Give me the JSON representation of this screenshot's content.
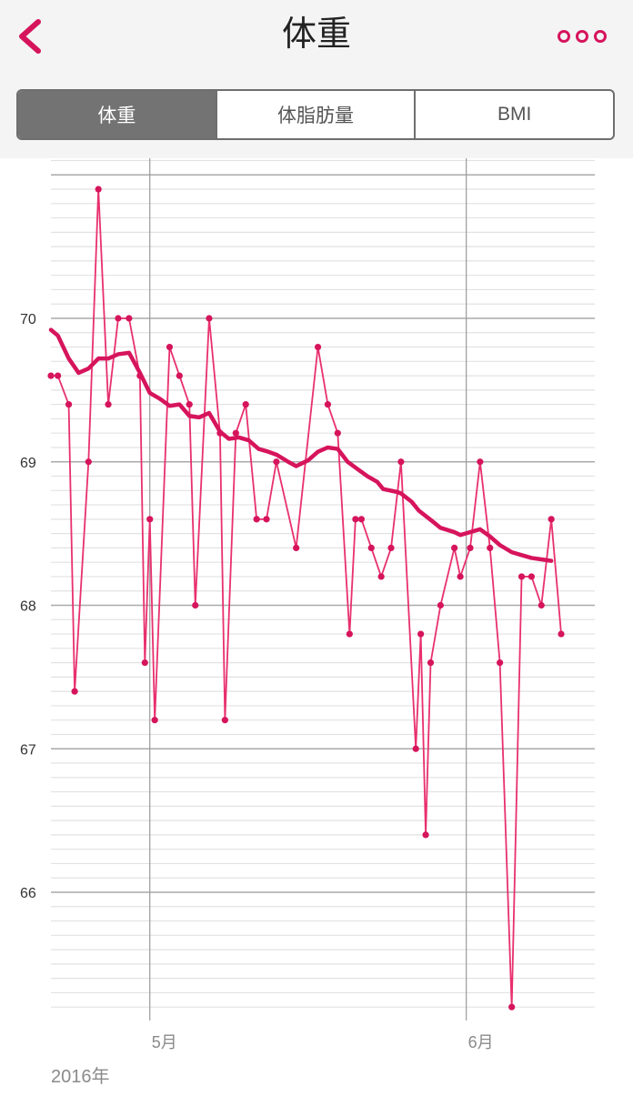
{
  "nav": {
    "title": "体重"
  },
  "tabs": [
    {
      "label": "体重",
      "active": true
    },
    {
      "label": "体脂肪量",
      "active": false
    },
    {
      "label": "BMI",
      "active": false
    }
  ],
  "colors": {
    "accent": "#d6145c",
    "points": "#e8306e"
  },
  "chart_data": {
    "type": "line",
    "year_label": "2016年",
    "x_ticks": [
      {
        "day": 10,
        "label": "5月"
      },
      {
        "day": 42,
        "label": "6月"
      }
    ],
    "y_ticks": [
      66,
      67,
      68,
      69,
      70
    ],
    "ylim": [
      65.2,
      71.2
    ],
    "xlim": [
      0,
      55
    ],
    "grid": true,
    "series": [
      {
        "values": [
          [
            0,
            69.6
          ],
          [
            0.7,
            69.6
          ],
          [
            1.8,
            69.4
          ],
          [
            2.4,
            67.4
          ],
          [
            3.8,
            69.0
          ],
          [
            4.8,
            70.9
          ],
          [
            5.8,
            69.4
          ],
          [
            6.8,
            70.0
          ],
          [
            7.9,
            70.0
          ],
          [
            9.0,
            69.6
          ],
          [
            9.5,
            67.6
          ],
          [
            10.0,
            68.6
          ],
          [
            10.5,
            67.2
          ],
          [
            12.0,
            69.8
          ],
          [
            13.0,
            69.6
          ],
          [
            14.0,
            69.4
          ],
          [
            14.6,
            68.0
          ],
          [
            16.0,
            70.0
          ],
          [
            17.1,
            69.2
          ],
          [
            17.6,
            67.2
          ],
          [
            18.7,
            69.2
          ],
          [
            19.7,
            69.4
          ],
          [
            20.8,
            68.6
          ],
          [
            21.8,
            68.6
          ],
          [
            22.8,
            69.0
          ],
          [
            24.8,
            68.4
          ],
          [
            27.0,
            69.8
          ],
          [
            28.0,
            69.4
          ],
          [
            29.0,
            69.2
          ],
          [
            30.2,
            67.8
          ],
          [
            30.8,
            68.6
          ],
          [
            31.4,
            68.6
          ],
          [
            32.4,
            68.4
          ],
          [
            33.4,
            68.2
          ],
          [
            34.4,
            68.4
          ],
          [
            35.4,
            69.0
          ],
          [
            36.9,
            67.0
          ],
          [
            37.4,
            67.8
          ],
          [
            37.9,
            66.4
          ],
          [
            38.4,
            67.6
          ],
          [
            39.4,
            68.0
          ],
          [
            40.8,
            68.4
          ],
          [
            41.4,
            68.2
          ],
          [
            42.4,
            68.4
          ],
          [
            43.4,
            69.0
          ],
          [
            44.4,
            68.4
          ],
          [
            45.4,
            67.6
          ],
          [
            46.6,
            65.2
          ],
          [
            47.6,
            68.2
          ],
          [
            48.6,
            68.2
          ],
          [
            49.6,
            68.0
          ],
          [
            50.6,
            68.6
          ],
          [
            51.6,
            67.8
          ]
        ]
      },
      {
        "values": [
          [
            0,
            69.92
          ],
          [
            0.7,
            69.88
          ],
          [
            1.8,
            69.72
          ],
          [
            2.8,
            69.62
          ],
          [
            3.8,
            69.65
          ],
          [
            4.8,
            69.72
          ],
          [
            5.8,
            69.72
          ],
          [
            6.8,
            69.75
          ],
          [
            7.9,
            69.76
          ],
          [
            9.0,
            69.62
          ],
          [
            10.0,
            69.48
          ],
          [
            11.0,
            69.44
          ],
          [
            12.0,
            69.39
          ],
          [
            13.0,
            69.4
          ],
          [
            14.0,
            69.32
          ],
          [
            15.0,
            69.31
          ],
          [
            16.0,
            69.34
          ],
          [
            17.1,
            69.21
          ],
          [
            18.0,
            69.16
          ],
          [
            19.0,
            69.17
          ],
          [
            20.0,
            69.15
          ],
          [
            21.0,
            69.09
          ],
          [
            22.0,
            69.07
          ],
          [
            22.8,
            69.05
          ],
          [
            24.0,
            69.0
          ],
          [
            24.8,
            68.97
          ],
          [
            26.0,
            69.01
          ],
          [
            27.0,
            69.07
          ],
          [
            28.0,
            69.1
          ],
          [
            29.0,
            69.09
          ],
          [
            30.0,
            69.0
          ],
          [
            31.0,
            68.95
          ],
          [
            32.0,
            68.9
          ],
          [
            33.0,
            68.86
          ],
          [
            33.6,
            68.81
          ],
          [
            35.0,
            68.79
          ],
          [
            35.4,
            68.78
          ],
          [
            36.5,
            68.72
          ],
          [
            37.2,
            68.66
          ],
          [
            38.5,
            68.59
          ],
          [
            39.4,
            68.54
          ],
          [
            40.8,
            68.51
          ],
          [
            41.4,
            68.49
          ],
          [
            42.4,
            68.51
          ],
          [
            43.4,
            68.53
          ],
          [
            44.4,
            68.48
          ],
          [
            45.4,
            68.42
          ],
          [
            46.6,
            68.37
          ],
          [
            47.6,
            68.35
          ],
          [
            48.6,
            68.33
          ],
          [
            49.6,
            68.32
          ],
          [
            50.6,
            68.31
          ]
        ]
      }
    ]
  }
}
